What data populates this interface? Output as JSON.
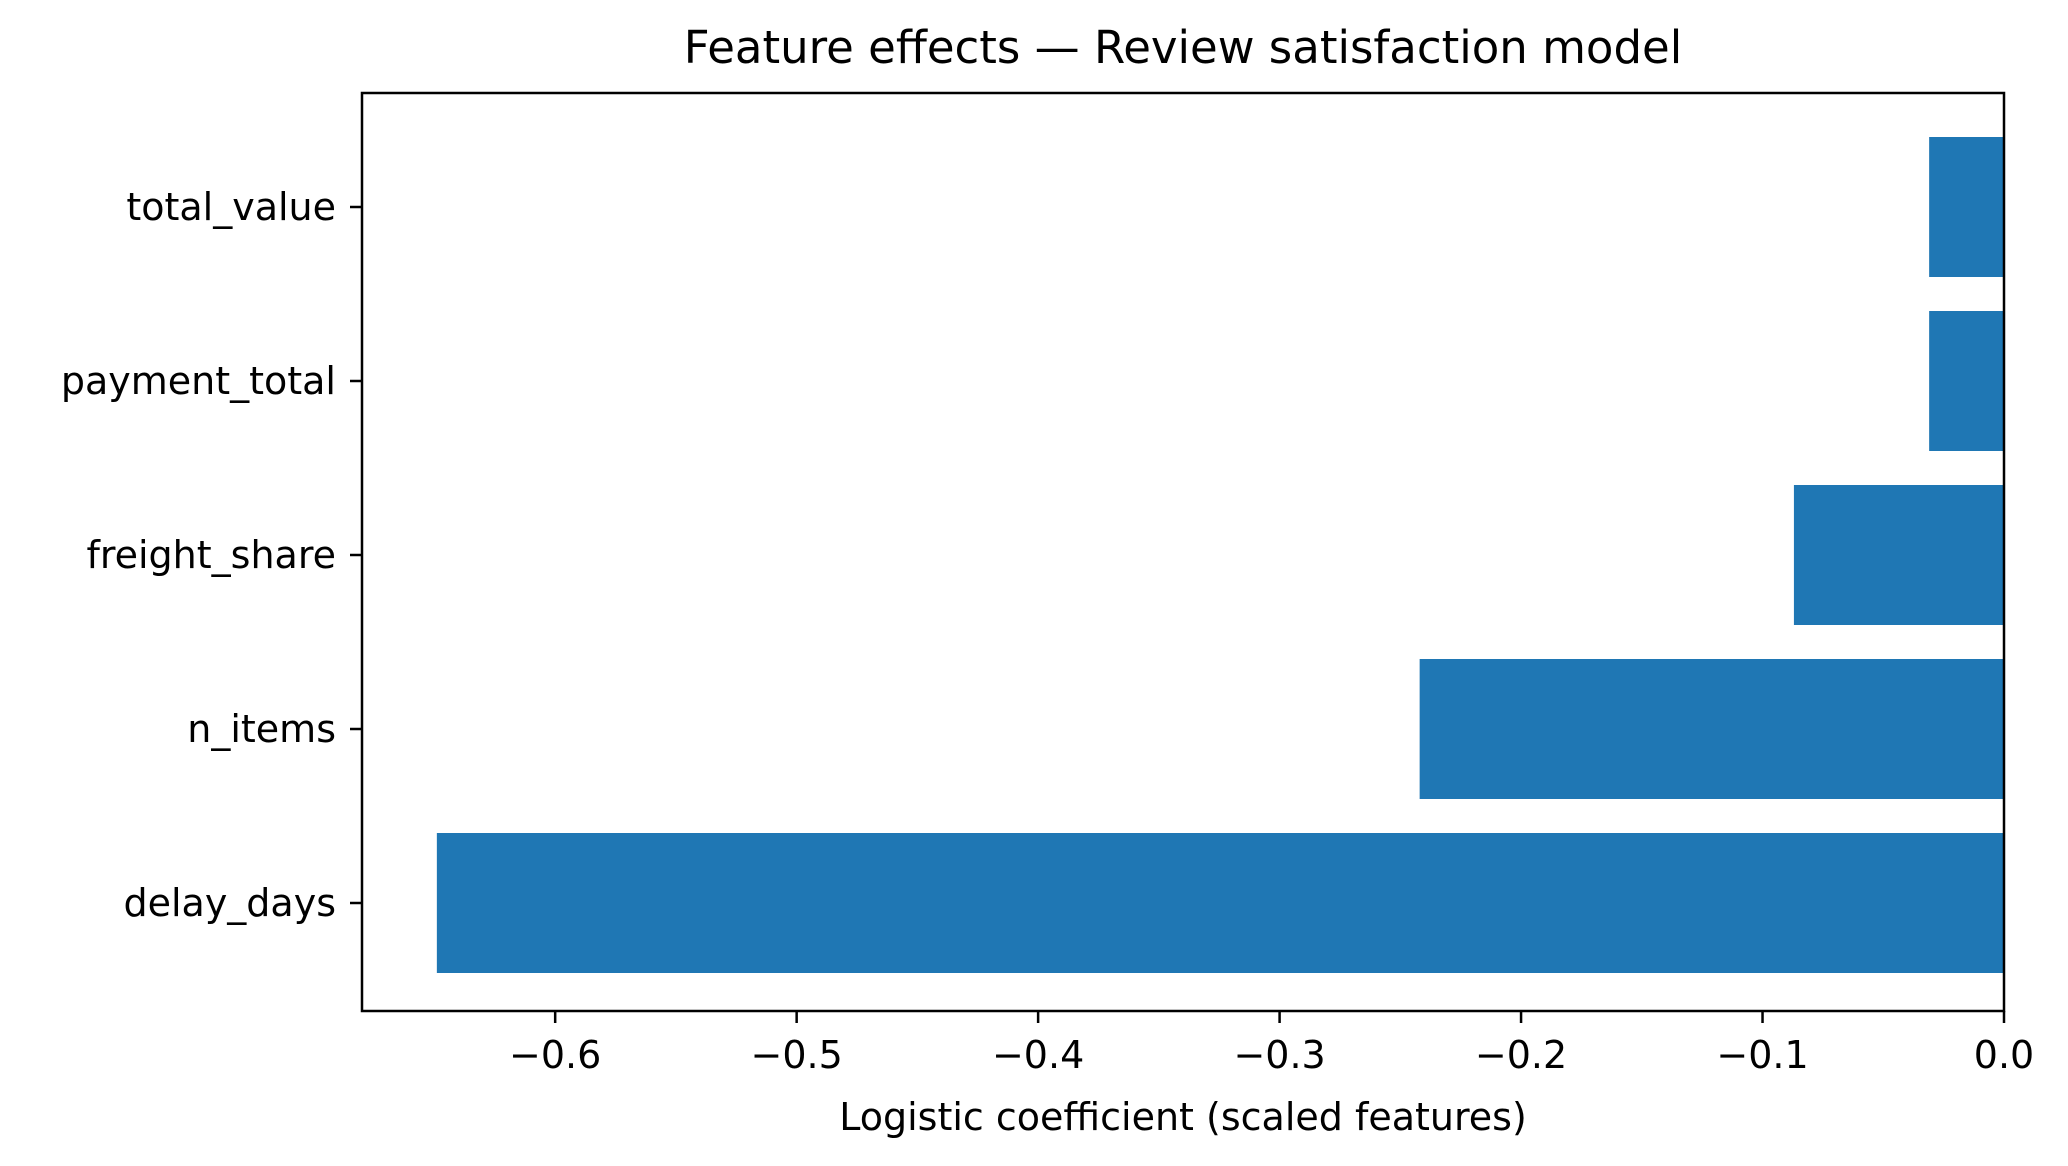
{
  "chart_data": {
    "type": "bar",
    "orientation": "horizontal",
    "title": "Feature effects — Review satisfaction model",
    "xlabel": "Logistic coefficient (scaled features)",
    "ylabel": "",
    "categories": [
      "delay_days",
      "n_items",
      "freight_share",
      "payment_total",
      "total_value"
    ],
    "values": [
      -0.649,
      -0.242,
      -0.087,
      -0.031,
      -0.031
    ],
    "xlim": [
      -0.68,
      0.0
    ],
    "xticks": [
      -0.6,
      -0.5,
      -0.4,
      -0.3,
      -0.2,
      -0.1,
      0.0
    ],
    "xtick_labels": [
      "−0.6",
      "−0.5",
      "−0.4",
      "−0.3",
      "−0.2",
      "−0.1",
      "0.0"
    ],
    "grid": false,
    "legend": "none",
    "bar_color": "#1f77b4"
  }
}
